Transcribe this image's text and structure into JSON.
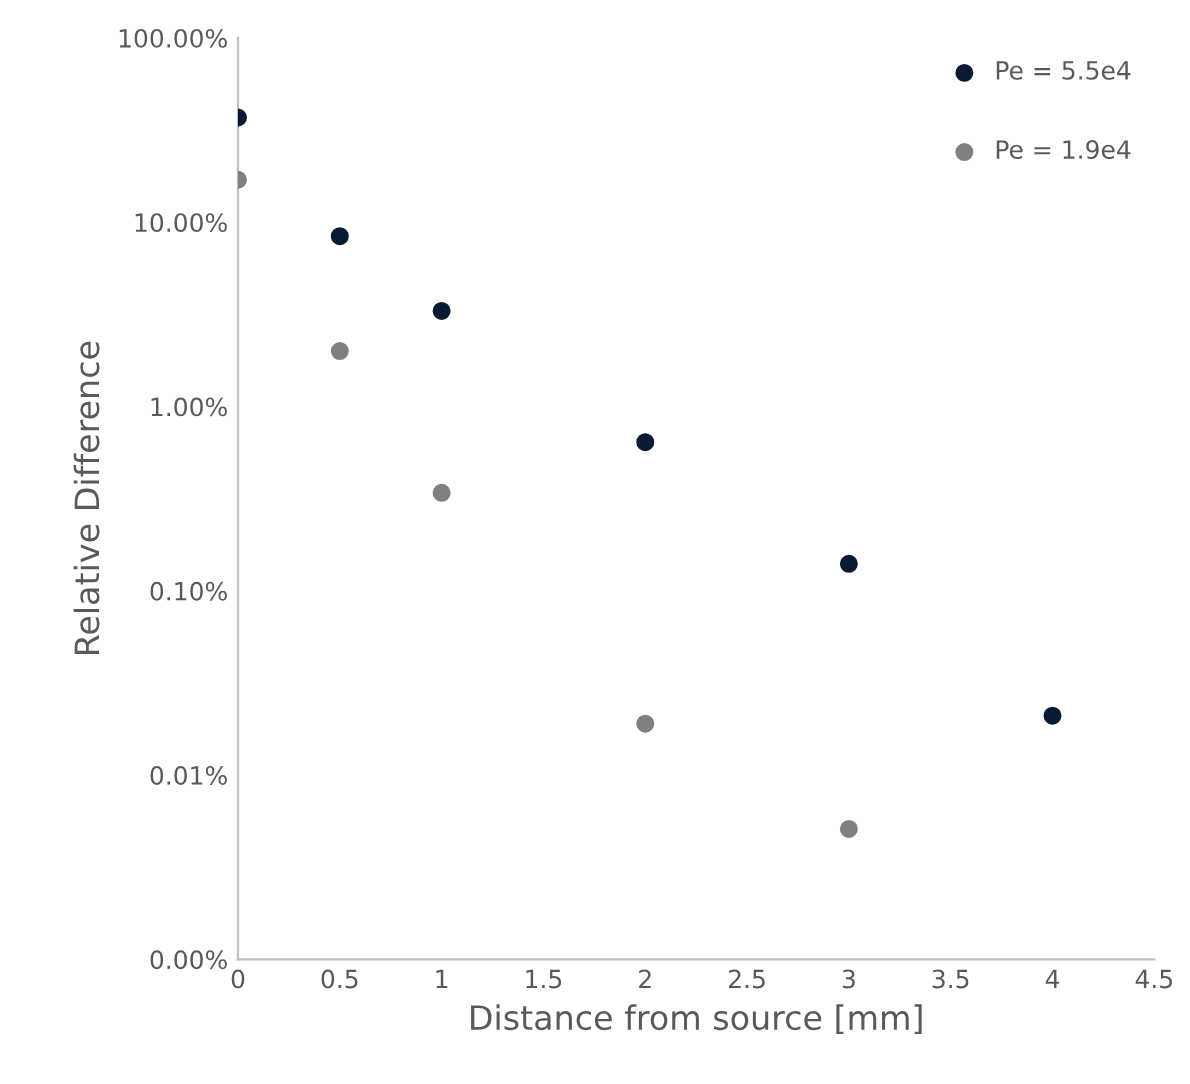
{
  "chart_data": {
    "type": "scatter",
    "xlabel": "Distance from source [mm]",
    "ylabel": "Relative Difference",
    "log": "y",
    "grid": false,
    "legend": "top right",
    "marker": "circle",
    "xlim": [
      0,
      4.5
    ],
    "xticks": [
      0,
      0.5,
      1,
      1.5,
      2,
      2.5,
      3,
      3.5,
      4,
      4.5
    ],
    "ylim": [
      0.001,
      100
    ],
    "yticks": [
      {
        "value": 0.001,
        "label": "0.00%"
      },
      {
        "value": 0.01,
        "label": "0.01%"
      },
      {
        "value": 0.1,
        "label": "0.10%"
      },
      {
        "value": 1,
        "label": "1.00%"
      },
      {
        "value": 10,
        "label": "10.00%"
      },
      {
        "value": 100,
        "label": "100.00%"
      }
    ],
    "series": [
      {
        "name": "Pe = 5.5e4",
        "color": "#0a1a33",
        "x": [
          0,
          0.5,
          1,
          2,
          3,
          4
        ],
        "values": [
          37,
          8.4,
          3.3,
          0.64,
          0.14,
          0.021
        ]
      },
      {
        "name": "Pe = 1.9e4",
        "color": "#808080",
        "x": [
          0,
          0.5,
          1,
          2,
          3
        ],
        "values": [
          17,
          2.0,
          0.34,
          0.019,
          0.0051
        ]
      }
    ]
  }
}
